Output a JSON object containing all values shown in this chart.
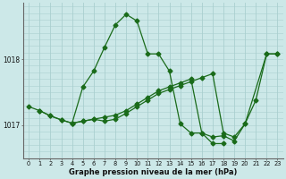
{
  "title": "Graphe pression niveau de la mer (hPa)",
  "bg_color": "#cce8e8",
  "grid_color": "#aacfcf",
  "line_color": "#1a6b1a",
  "marker_color": "#1a6b1a",
  "ylabel_ticks": [
    1017,
    1018
  ],
  "x_labels": [
    "0",
    "1",
    "2",
    "3",
    "4",
    "5",
    "6",
    "7",
    "8",
    "9",
    "10",
    "11",
    "12",
    "13",
    "14",
    "15",
    "16",
    "17",
    "18",
    "19",
    "20",
    "21",
    "22",
    "23"
  ],
  "series1_x": [
    0,
    1,
    2,
    3,
    4,
    5,
    6,
    7,
    8,
    9,
    10,
    11,
    12,
    13,
    14,
    15,
    16,
    17,
    18
  ],
  "series1_y": [
    1017.28,
    1017.22,
    1017.14,
    1017.08,
    1017.03,
    1017.58,
    1017.82,
    1018.18,
    1018.52,
    1018.68,
    1018.58,
    1018.08,
    1018.08,
    1017.82,
    1017.02,
    1016.88,
    1016.88,
    1016.72,
    1016.72
  ],
  "series2_x": [
    1,
    2,
    3,
    4,
    5,
    6,
    7,
    8,
    9,
    10,
    11,
    12,
    13,
    14,
    15,
    16,
    17,
    18,
    19,
    20,
    22,
    23
  ],
  "series2_y": [
    1017.22,
    1017.14,
    1017.08,
    1017.03,
    1017.06,
    1017.09,
    1017.06,
    1017.09,
    1017.18,
    1017.28,
    1017.38,
    1017.48,
    1017.54,
    1017.6,
    1017.66,
    1017.72,
    1017.78,
    1016.88,
    1016.82,
    1017.02,
    1018.08,
    1018.08
  ],
  "series3_x": [
    4,
    5,
    6,
    7,
    8,
    9,
    10,
    11,
    12,
    13,
    14,
    15,
    16,
    17,
    18,
    19,
    20,
    21,
    22,
    23
  ],
  "series3_y": [
    1017.03,
    1017.06,
    1017.09,
    1017.12,
    1017.15,
    1017.22,
    1017.32,
    1017.42,
    1017.52,
    1017.58,
    1017.64,
    1017.7,
    1016.88,
    1016.82,
    1016.84,
    1016.76,
    1017.02,
    1017.38,
    1018.08,
    1018.08
  ],
  "xlim": [
    -0.5,
    23.5
  ],
  "ylim": [
    1016.5,
    1018.85
  ],
  "figsize": [
    3.2,
    2.0
  ],
  "dpi": 100
}
